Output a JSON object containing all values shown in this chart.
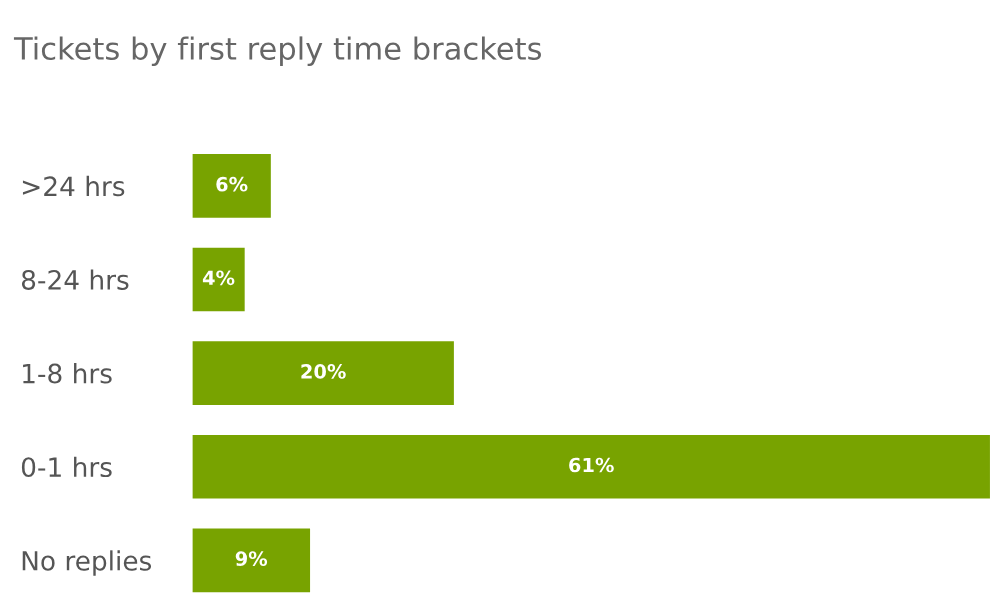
{
  "chart_data": {
    "type": "bar",
    "orientation": "horizontal",
    "title": "Tickets by first reply time brackets",
    "categories": [
      ">24 hrs",
      "8-24 hrs",
      "1-8 hrs",
      "0-1 hrs",
      "No replies"
    ],
    "values": [
      6,
      4,
      20,
      61,
      9
    ],
    "value_labels": [
      "6%",
      "4%",
      "20%",
      "61%",
      "9%"
    ],
    "color": "#78a300",
    "xlim": [
      0,
      61
    ],
    "grid": false,
    "legend": false
  }
}
